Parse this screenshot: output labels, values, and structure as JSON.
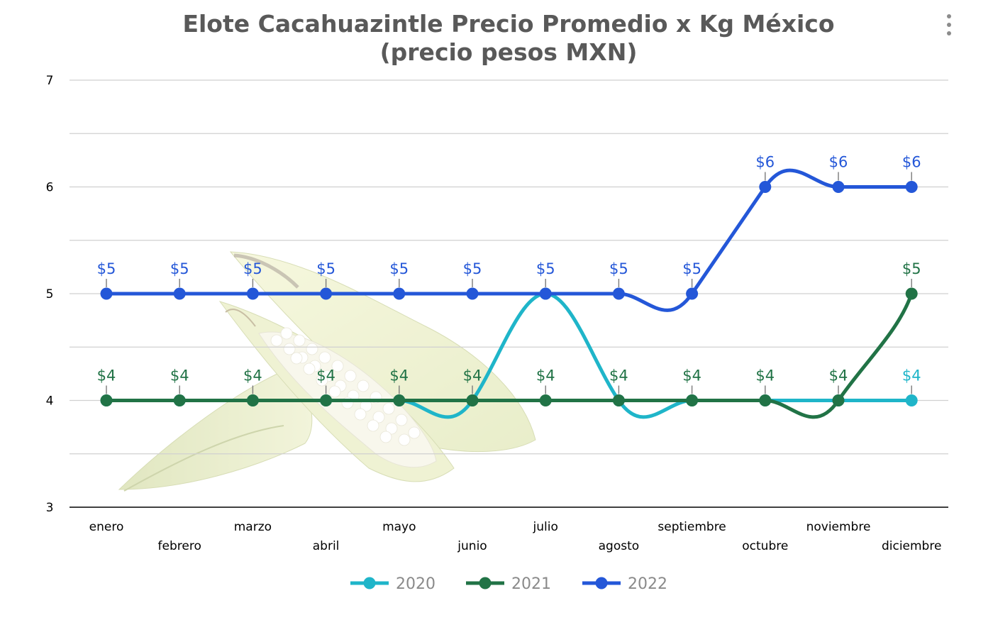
{
  "chart_data": {
    "type": "line",
    "title_line1": "Elote Cacahuazintle Precio Promedio x Kg México",
    "title_line2": "(precio pesos MXN)",
    "categories": [
      "enero",
      "febrero",
      "marzo",
      "abril",
      "mayo",
      "junio",
      "julio",
      "agosto",
      "septiembre",
      "octubre",
      "noviembre",
      "diciembre"
    ],
    "ylim": [
      3,
      7
    ],
    "yticks": [
      3,
      4,
      5,
      6,
      7
    ],
    "grid": true,
    "legend_position": "bottom",
    "label_prefix": "$",
    "series": [
      {
        "name": "2020",
        "color": "#1fb5c9",
        "values": [
          4,
          4,
          4,
          4,
          4,
          4,
          5,
          4,
          4,
          4,
          4,
          4
        ],
        "labels": [
          "",
          "",
          "",
          "",
          "",
          "",
          "",
          "",
          "",
          "",
          "",
          "$4"
        ]
      },
      {
        "name": "2021",
        "color": "#217346",
        "values": [
          4,
          4,
          4,
          4,
          4,
          4,
          4,
          4,
          4,
          4,
          4,
          5
        ],
        "labels": [
          "$4",
          "$4",
          "$4",
          "$4",
          "$4",
          "$4",
          "$4",
          "$4",
          "$4",
          "$4",
          "$4",
          "$5"
        ]
      },
      {
        "name": "2022",
        "color": "#2457d8",
        "values": [
          5,
          5,
          5,
          5,
          5,
          5,
          5,
          5,
          5,
          6,
          6,
          6
        ],
        "labels": [
          "$5",
          "$5",
          "$5",
          "$5",
          "$5",
          "$5",
          "$5",
          "$5",
          "$5",
          "$6",
          "$6",
          "$6"
        ]
      }
    ]
  }
}
